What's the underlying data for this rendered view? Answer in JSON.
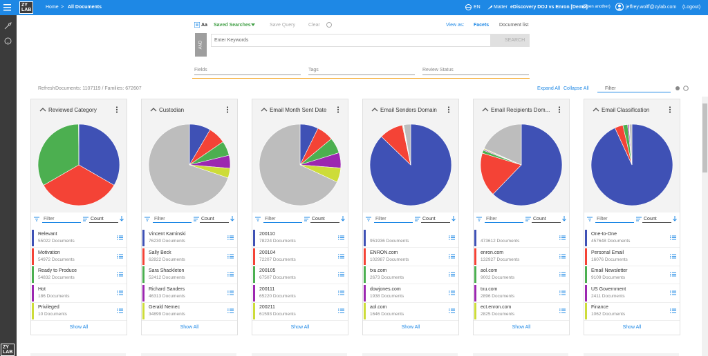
{
  "header": {
    "home": "Home",
    "current": "All Documents",
    "language": "EN",
    "matter_label": "Matter",
    "matter_name": "eDiscovery DOJ vs Enron [Demo]",
    "open_another": "(Open another)",
    "user": "jeffrey.wolff@zylab.com",
    "logout": "(Logout)"
  },
  "sidebar": {
    "logo_top": "ZY",
    "logo_bottom": "LAB"
  },
  "toolbar": {
    "aa": "Aa",
    "saved_searches": "Saved Searches",
    "save_query": "Save Query",
    "clear": "Clear",
    "view_as": "View as:",
    "facets": "Facets",
    "document_list": "Document list"
  },
  "search": {
    "operator": "AND",
    "placeholder": "Enter Keywords",
    "button": "SEARCH",
    "fields": "Fields",
    "tags": "Tags",
    "review_status": "Review Status"
  },
  "stats": {
    "refresh": "Refresh",
    "counts": "Documents: 1107119 / Families: 672607",
    "expand_all": "Expand All",
    "collapse_all": "Collapse All",
    "filter": "Filter"
  },
  "slice_colors": [
    "#3f51b5",
    "#f44336",
    "#4caf50",
    "#9c27b0",
    "#cddc39"
  ],
  "other_color": "#bdbdbd",
  "panels": [
    {
      "title": "Reviewed Category",
      "filter": "Filter",
      "sort": "Count",
      "show_all": "Show All",
      "other": 0,
      "items": [
        {
          "label": "Relevant",
          "count": 55022,
          "count_label": "55022 Documents"
        },
        {
          "label": "Motivation",
          "count": 54972,
          "count_label": "54972 Documents"
        },
        {
          "label": "Ready to Produce",
          "count": 54832,
          "count_label": "54832 Documents"
        },
        {
          "label": "Hot",
          "count": 186,
          "count_label": "186 Documents"
        },
        {
          "label": "Privileged",
          "count": 10,
          "count_label": "10 Documents"
        }
      ]
    },
    {
      "title": "Custodian",
      "filter": "Filter",
      "sort": "Count",
      "show_all": "Show All",
      "other": 630000,
      "items": [
        {
          "label": "Vincent Kaminski",
          "count": 76230,
          "count_label": "76230 Documents"
        },
        {
          "label": "Sally Beck",
          "count": 62822,
          "count_label": "62822 Documents"
        },
        {
          "label": "Sara Shackleton",
          "count": 52412,
          "count_label": "52412 Documents"
        },
        {
          "label": "Richard Sanders",
          "count": 46313,
          "count_label": "46313 Documents"
        },
        {
          "label": "Gerald Nemec",
          "count": 34899,
          "count_label": "34899 Documents"
        }
      ]
    },
    {
      "title": "Email Month Sent Date",
      "filter": "Filter",
      "sort": "Count",
      "show_all": "Show All",
      "other": 735000,
      "items": [
        {
          "label": "200110",
          "count": 78224,
          "count_label": "78224 Documents"
        },
        {
          "label": "200104",
          "count": 72207,
          "count_label": "72207 Documents"
        },
        {
          "label": "200105",
          "count": 67507,
          "count_label": "67507 Documents"
        },
        {
          "label": "200111",
          "count": 65220,
          "count_label": "65220 Documents"
        },
        {
          "label": "200211",
          "count": 61593,
          "count_label": "61593 Documents"
        }
      ]
    },
    {
      "title": "Email Senders Domain",
      "filter": "Filter",
      "sort": "Count",
      "show_all": "Show All",
      "other": 30000,
      "items": [
        {
          "label": null,
          "count": 951936,
          "count_label": "951936 Documents"
        },
        {
          "label": "ENRON.com",
          "count": 102987,
          "count_label": "102987 Documents"
        },
        {
          "label": "txu.com",
          "count": 2673,
          "count_label": "2673 Documents"
        },
        {
          "label": "dowjones.com",
          "count": 1938,
          "count_label": "1938 Documents"
        },
        {
          "label": "aol.com",
          "count": 1646,
          "count_label": "1646 Documents"
        }
      ]
    },
    {
      "title": "Email Recipients Dom...",
      "filter": "Filter",
      "sort": "Count",
      "show_all": "Show All",
      "other": 140000,
      "items": [
        {
          "label": null,
          "count": 473612,
          "count_label": "473612 Documents"
        },
        {
          "label": "enron.com",
          "count": 132927,
          "count_label": "132927 Documents"
        },
        {
          "label": "aol.com",
          "count": 9002,
          "count_label": "9002 Documents"
        },
        {
          "label": "txu.com",
          "count": 2896,
          "count_label": "2896 Documents"
        },
        {
          "label": "ect.enron.com",
          "count": 2825,
          "count_label": "2825 Documents"
        }
      ]
    },
    {
      "title": "Email Classification",
      "filter": "Filter",
      "sort": "Count",
      "show_all": "Show All",
      "other": 5000,
      "items": [
        {
          "label": "One-to-One",
          "count": 457648,
          "count_label": "457648 Documents"
        },
        {
          "label": "Personal Email",
          "count": 16076,
          "count_label": "16076 Documents"
        },
        {
          "label": "Email Newsletter",
          "count": 9109,
          "count_label": "9109 Documents"
        },
        {
          "label": "US Government",
          "count": 2411,
          "count_label": "2411 Documents"
        },
        {
          "label": "Finance",
          "count": 1062,
          "count_label": "1062 Documents"
        }
      ]
    }
  ]
}
